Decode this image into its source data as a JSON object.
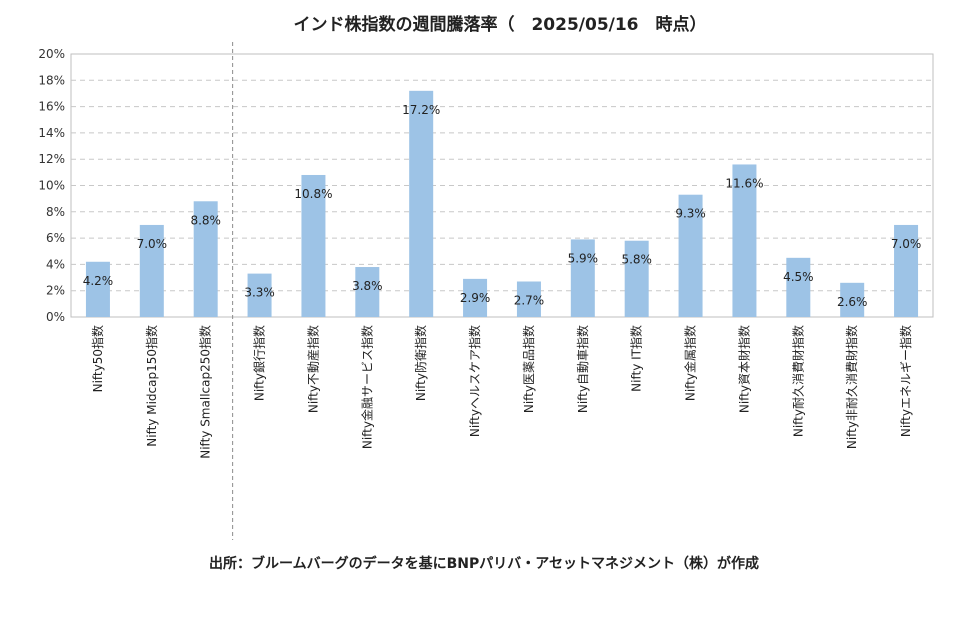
{
  "chart_data": {
    "type": "bar",
    "title": "インド株指数の週間騰落率（　2025/05/16　時点）",
    "categories": [
      "Nifty50指数",
      "Nifty Midcap150指数",
      "Nifty Smallcap250指数",
      "Nifty銀行指数",
      "Nifty不動産指数",
      "Nifty金融サービス指数",
      "Nifty防衛指数",
      "Niftyヘルスケア指数",
      "Nifty医薬品指数",
      "Nifty自動車指数",
      "Nifty IT指数",
      "Nifty金属指数",
      "Nifty資本財指数",
      "Nifty耐久消費財指数",
      "Nifty非耐久消費財指数",
      "Niftyエネルギー指数"
    ],
    "values": [
      4.2,
      7.0,
      8.8,
      3.3,
      10.8,
      3.8,
      17.2,
      2.9,
      2.7,
      5.9,
      5.8,
      9.3,
      11.6,
      4.5,
      2.6,
      7.0
    ],
    "value_labels": [
      "4.2%",
      "7.0%",
      "8.8%",
      "3.3%",
      "10.8%",
      "3.8%",
      "17.2%",
      "2.9%",
      "2.7%",
      "5.9%",
      "5.8%",
      "9.3%",
      "11.6%",
      "4.5%",
      "2.6%",
      "7.0%"
    ],
    "y_ticks": [
      "0%",
      "2%",
      "4%",
      "6%",
      "8%",
      "10%",
      "12%",
      "14%",
      "16%",
      "18%",
      "20%"
    ],
    "ylim": [
      0,
      20
    ],
    "grid": true,
    "bar_color": "#9DC3E6",
    "divider_after_index": 2
  },
  "source_note": "出所：ブルームバーグのデータを基にBNPパリバ・アセットマネジメント（株）が作成"
}
